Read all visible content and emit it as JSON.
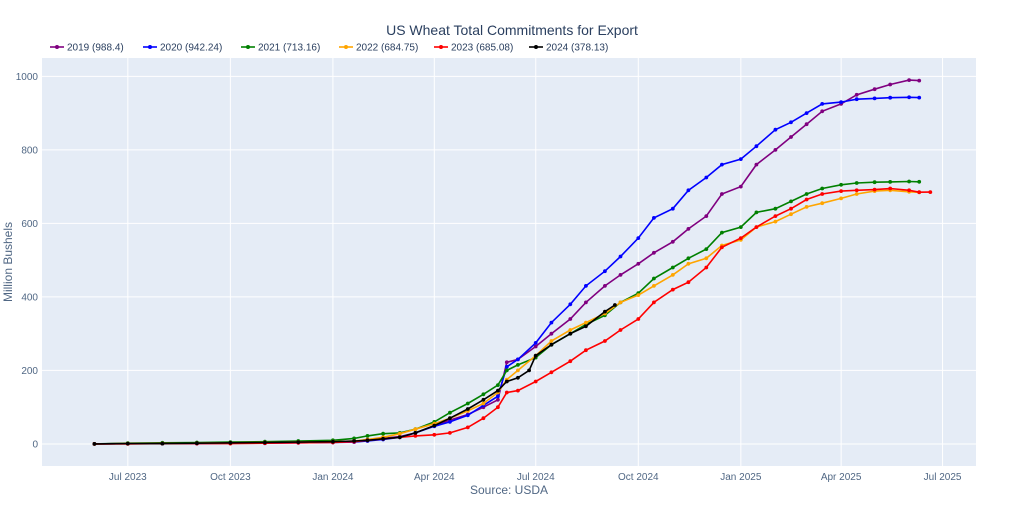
{
  "chart_data": {
    "type": "line",
    "title": "US Wheat Total Commitments for Export",
    "xlabel": "Source: USDA",
    "ylabel": "Million Bushels",
    "x_axis": {
      "type": "date",
      "range": [
        "2023-04-15",
        "2025-07-31"
      ],
      "ticks": [
        {
          "date": "2023-07-01",
          "label": "Jul 2023"
        },
        {
          "date": "2023-10-01",
          "label": "Oct 2023"
        },
        {
          "date": "2024-01-01",
          "label": "Jan 2024"
        },
        {
          "date": "2024-04-01",
          "label": "Apr 2024"
        },
        {
          "date": "2024-07-01",
          "label": "Jul 2024"
        },
        {
          "date": "2024-10-01",
          "label": "Oct 2024"
        },
        {
          "date": "2025-01-01",
          "label": "Jan 2025"
        },
        {
          "date": "2025-04-01",
          "label": "Apr 2025"
        },
        {
          "date": "2025-07-01",
          "label": "Jul 2025"
        }
      ]
    },
    "y_axis": {
      "range": [
        -60,
        1050
      ],
      "ticks": [
        0,
        200,
        400,
        600,
        800,
        1000
      ]
    },
    "grid": true,
    "legend_position": "top-left",
    "background": "#e5ecf6",
    "series": [
      {
        "name": "2019 (988.4)",
        "color": "#800080",
        "points": [
          [
            "2023-06-01",
            0
          ],
          [
            "2023-07-01",
            1
          ],
          [
            "2023-08-01",
            1
          ],
          [
            "2023-09-01",
            2
          ],
          [
            "2023-10-01",
            2
          ],
          [
            "2023-11-01",
            3
          ],
          [
            "2023-12-01",
            4
          ],
          [
            "2024-01-01",
            5
          ],
          [
            "2024-01-20",
            6
          ],
          [
            "2024-02-01",
            12
          ],
          [
            "2024-02-15",
            15
          ],
          [
            "2024-03-01",
            20
          ],
          [
            "2024-03-15",
            30
          ],
          [
            "2024-04-01",
            50
          ],
          [
            "2024-04-15",
            65
          ],
          [
            "2024-05-01",
            80
          ],
          [
            "2024-05-15",
            100
          ],
          [
            "2024-05-28",
            120
          ],
          [
            "2024-06-05",
            222
          ],
          [
            "2024-06-15",
            230
          ],
          [
            "2024-07-01",
            265
          ],
          [
            "2024-07-15",
            300
          ],
          [
            "2024-08-01",
            340
          ],
          [
            "2024-08-15",
            385
          ],
          [
            "2024-09-01",
            430
          ],
          [
            "2024-09-15",
            460
          ],
          [
            "2024-10-01",
            490
          ],
          [
            "2024-10-15",
            520
          ],
          [
            "2024-11-01",
            550
          ],
          [
            "2024-11-15",
            585
          ],
          [
            "2024-12-01",
            620
          ],
          [
            "2024-12-15",
            680
          ],
          [
            "2025-01-01",
            700
          ],
          [
            "2025-01-15",
            760
          ],
          [
            "2025-02-01",
            800
          ],
          [
            "2025-02-15",
            835
          ],
          [
            "2025-03-01",
            870
          ],
          [
            "2025-03-15",
            905
          ],
          [
            "2025-04-01",
            925
          ],
          [
            "2025-04-15",
            950
          ],
          [
            "2025-05-01",
            965
          ],
          [
            "2025-05-15",
            978
          ],
          [
            "2025-06-01",
            990
          ],
          [
            "2025-06-10",
            988.4
          ]
        ]
      },
      {
        "name": "2020 (942.24)",
        "color": "#0000ff",
        "points": [
          [
            "2023-06-01",
            0
          ],
          [
            "2023-07-01",
            1
          ],
          [
            "2023-08-01",
            1
          ],
          [
            "2023-09-01",
            1
          ],
          [
            "2023-10-01",
            2
          ],
          [
            "2023-11-01",
            2
          ],
          [
            "2023-12-01",
            3
          ],
          [
            "2024-01-01",
            4
          ],
          [
            "2024-01-20",
            5
          ],
          [
            "2024-02-01",
            8
          ],
          [
            "2024-02-15",
            12
          ],
          [
            "2024-03-01",
            18
          ],
          [
            "2024-03-15",
            30
          ],
          [
            "2024-04-01",
            48
          ],
          [
            "2024-04-15",
            60
          ],
          [
            "2024-05-01",
            78
          ],
          [
            "2024-05-15",
            105
          ],
          [
            "2024-05-28",
            130
          ],
          [
            "2024-06-05",
            210
          ],
          [
            "2024-06-15",
            230
          ],
          [
            "2024-07-01",
            275
          ],
          [
            "2024-07-15",
            330
          ],
          [
            "2024-08-01",
            380
          ],
          [
            "2024-08-15",
            430
          ],
          [
            "2024-09-01",
            470
          ],
          [
            "2024-09-15",
            510
          ],
          [
            "2024-10-01",
            560
          ],
          [
            "2024-10-15",
            615
          ],
          [
            "2024-11-01",
            640
          ],
          [
            "2024-11-15",
            690
          ],
          [
            "2024-12-01",
            725
          ],
          [
            "2024-12-15",
            760
          ],
          [
            "2025-01-01",
            775
          ],
          [
            "2025-01-15",
            810
          ],
          [
            "2025-02-01",
            855
          ],
          [
            "2025-02-15",
            875
          ],
          [
            "2025-03-01",
            900
          ],
          [
            "2025-03-15",
            925
          ],
          [
            "2025-04-01",
            930
          ],
          [
            "2025-04-15",
            938
          ],
          [
            "2025-05-01",
            940
          ],
          [
            "2025-05-15",
            942
          ],
          [
            "2025-06-01",
            943
          ],
          [
            "2025-06-10",
            942.24
          ]
        ]
      },
      {
        "name": "2021 (713.16)",
        "color": "#008000",
        "points": [
          [
            "2023-06-01",
            0
          ],
          [
            "2023-07-01",
            2
          ],
          [
            "2023-08-01",
            3
          ],
          [
            "2023-09-01",
            4
          ],
          [
            "2023-10-01",
            5
          ],
          [
            "2023-11-01",
            6
          ],
          [
            "2023-12-01",
            8
          ],
          [
            "2024-01-01",
            10
          ],
          [
            "2024-01-20",
            15
          ],
          [
            "2024-02-01",
            22
          ],
          [
            "2024-02-15",
            28
          ],
          [
            "2024-03-01",
            30
          ],
          [
            "2024-03-15",
            40
          ],
          [
            "2024-04-01",
            60
          ],
          [
            "2024-04-15",
            85
          ],
          [
            "2024-05-01",
            110
          ],
          [
            "2024-05-15",
            135
          ],
          [
            "2024-05-28",
            160
          ],
          [
            "2024-06-05",
            200
          ],
          [
            "2024-06-15",
            215
          ],
          [
            "2024-07-01",
            235
          ],
          [
            "2024-07-15",
            270
          ],
          [
            "2024-08-01",
            300
          ],
          [
            "2024-08-15",
            325
          ],
          [
            "2024-09-01",
            350
          ],
          [
            "2024-09-15",
            385
          ],
          [
            "2024-10-01",
            410
          ],
          [
            "2024-10-15",
            450
          ],
          [
            "2024-11-01",
            480
          ],
          [
            "2024-11-15",
            505
          ],
          [
            "2024-12-01",
            530
          ],
          [
            "2024-12-15",
            575
          ],
          [
            "2025-01-01",
            590
          ],
          [
            "2025-01-15",
            630
          ],
          [
            "2025-02-01",
            640
          ],
          [
            "2025-02-15",
            660
          ],
          [
            "2025-03-01",
            680
          ],
          [
            "2025-03-15",
            695
          ],
          [
            "2025-04-01",
            705
          ],
          [
            "2025-04-15",
            710
          ],
          [
            "2025-05-01",
            712
          ],
          [
            "2025-05-15",
            713
          ],
          [
            "2025-06-01",
            714
          ],
          [
            "2025-06-10",
            713.16
          ]
        ]
      },
      {
        "name": "2022 (684.75)",
        "color": "#ffa500",
        "points": [
          [
            "2023-06-01",
            0
          ],
          [
            "2023-07-01",
            1
          ],
          [
            "2023-08-01",
            1
          ],
          [
            "2023-09-01",
            2
          ],
          [
            "2023-10-01",
            3
          ],
          [
            "2023-11-01",
            4
          ],
          [
            "2023-12-01",
            5
          ],
          [
            "2024-01-01",
            6
          ],
          [
            "2024-01-20",
            8
          ],
          [
            "2024-02-01",
            12
          ],
          [
            "2024-02-15",
            18
          ],
          [
            "2024-03-01",
            28
          ],
          [
            "2024-03-15",
            40
          ],
          [
            "2024-04-01",
            55
          ],
          [
            "2024-04-15",
            70
          ],
          [
            "2024-05-01",
            90
          ],
          [
            "2024-05-15",
            110
          ],
          [
            "2024-05-28",
            140
          ],
          [
            "2024-06-05",
            175
          ],
          [
            "2024-06-15",
            200
          ],
          [
            "2024-07-01",
            240
          ],
          [
            "2024-07-15",
            280
          ],
          [
            "2024-08-01",
            310
          ],
          [
            "2024-08-15",
            330
          ],
          [
            "2024-09-01",
            355
          ],
          [
            "2024-09-15",
            385
          ],
          [
            "2024-10-01",
            405
          ],
          [
            "2024-10-15",
            430
          ],
          [
            "2024-11-01",
            460
          ],
          [
            "2024-11-15",
            490
          ],
          [
            "2024-12-01",
            505
          ],
          [
            "2024-12-15",
            540
          ],
          [
            "2025-01-01",
            555
          ],
          [
            "2025-01-15",
            590
          ],
          [
            "2025-02-01",
            605
          ],
          [
            "2025-02-15",
            625
          ],
          [
            "2025-03-01",
            645
          ],
          [
            "2025-03-15",
            655
          ],
          [
            "2025-04-01",
            668
          ],
          [
            "2025-04-15",
            680
          ],
          [
            "2025-05-01",
            688
          ],
          [
            "2025-05-15",
            690
          ],
          [
            "2025-06-01",
            686
          ],
          [
            "2025-06-10",
            684.75
          ]
        ]
      },
      {
        "name": "2023 (685.08)",
        "color": "#ff0000",
        "points": [
          [
            "2023-06-01",
            0
          ],
          [
            "2023-07-01",
            0
          ],
          [
            "2023-08-01",
            1
          ],
          [
            "2023-09-01",
            1
          ],
          [
            "2023-10-01",
            1
          ],
          [
            "2023-11-01",
            2
          ],
          [
            "2023-12-01",
            3
          ],
          [
            "2024-01-01",
            4
          ],
          [
            "2024-01-20",
            6
          ],
          [
            "2024-02-01",
            10
          ],
          [
            "2024-02-15",
            14
          ],
          [
            "2024-03-01",
            18
          ],
          [
            "2024-03-15",
            22
          ],
          [
            "2024-04-01",
            25
          ],
          [
            "2024-04-15",
            30
          ],
          [
            "2024-05-01",
            45
          ],
          [
            "2024-05-15",
            70
          ],
          [
            "2024-05-28",
            100
          ],
          [
            "2024-06-05",
            140
          ],
          [
            "2024-06-15",
            145
          ],
          [
            "2024-07-01",
            170
          ],
          [
            "2024-07-15",
            195
          ],
          [
            "2024-08-01",
            225
          ],
          [
            "2024-08-15",
            255
          ],
          [
            "2024-09-01",
            280
          ],
          [
            "2024-09-15",
            310
          ],
          [
            "2024-10-01",
            340
          ],
          [
            "2024-10-15",
            385
          ],
          [
            "2024-11-01",
            420
          ],
          [
            "2024-11-15",
            440
          ],
          [
            "2024-12-01",
            480
          ],
          [
            "2024-12-15",
            535
          ],
          [
            "2025-01-01",
            560
          ],
          [
            "2025-01-15",
            590
          ],
          [
            "2025-02-01",
            620
          ],
          [
            "2025-02-15",
            640
          ],
          [
            "2025-03-01",
            665
          ],
          [
            "2025-03-15",
            680
          ],
          [
            "2025-04-01",
            688
          ],
          [
            "2025-04-15",
            690
          ],
          [
            "2025-05-01",
            692
          ],
          [
            "2025-05-15",
            695
          ],
          [
            "2025-06-01",
            690
          ],
          [
            "2025-06-10",
            685
          ],
          [
            "2025-06-20",
            685.08
          ]
        ]
      },
      {
        "name": "2024 (378.13)",
        "color": "#000000",
        "points": [
          [
            "2023-06-01",
            0
          ],
          [
            "2023-07-01",
            1
          ],
          [
            "2023-08-01",
            1
          ],
          [
            "2023-09-01",
            2
          ],
          [
            "2023-10-01",
            3
          ],
          [
            "2023-11-01",
            4
          ],
          [
            "2023-12-01",
            5
          ],
          [
            "2024-01-01",
            6
          ],
          [
            "2024-01-20",
            8
          ],
          [
            "2024-02-01",
            10
          ],
          [
            "2024-02-15",
            14
          ],
          [
            "2024-03-01",
            18
          ],
          [
            "2024-03-15",
            30
          ],
          [
            "2024-04-01",
            50
          ],
          [
            "2024-04-15",
            70
          ],
          [
            "2024-05-01",
            95
          ],
          [
            "2024-05-15",
            120
          ],
          [
            "2024-05-28",
            145
          ],
          [
            "2024-06-05",
            170
          ],
          [
            "2024-06-15",
            180
          ],
          [
            "2024-06-25",
            200
          ],
          [
            "2024-07-01",
            240
          ],
          [
            "2024-07-15",
            270
          ],
          [
            "2024-08-01",
            300
          ],
          [
            "2024-08-15",
            320
          ],
          [
            "2024-09-01",
            360
          ],
          [
            "2024-09-10",
            378.13
          ]
        ]
      }
    ]
  }
}
